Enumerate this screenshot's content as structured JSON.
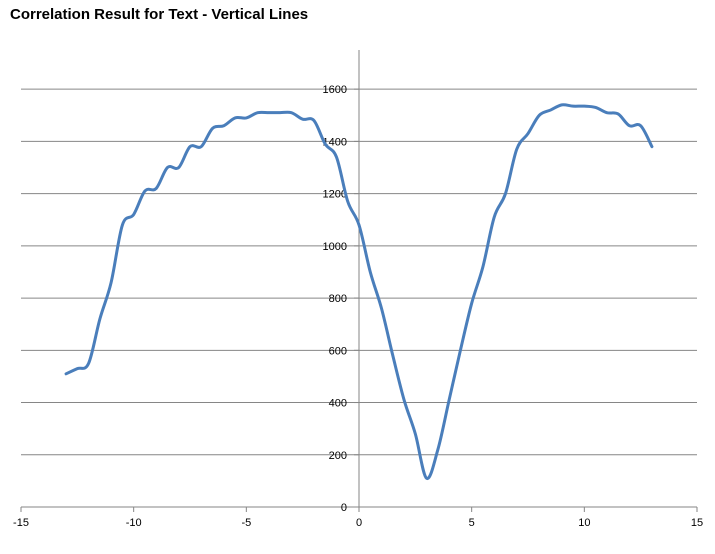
{
  "chart_data": {
    "type": "line",
    "title": "Correlation Result for Text - Vertical Lines",
    "xlabel": "",
    "ylabel": "",
    "xlim": [
      -15,
      15
    ],
    "ylim": [
      0,
      1750
    ],
    "x_ticks": [
      "-15",
      "-10",
      "-5",
      "0",
      "5",
      "10",
      "15"
    ],
    "x_tick_values": [
      -15,
      -10,
      -5,
      0,
      5,
      10,
      15
    ],
    "y_ticks": [
      "0",
      "200",
      "400",
      "600",
      "800",
      "1000",
      "1200",
      "1400",
      "1600"
    ],
    "y_tick_values": [
      0,
      200,
      400,
      600,
      800,
      1000,
      1200,
      1400,
      1600
    ],
    "grid": "horizontal",
    "legend": "none",
    "line_color": "#4a7ebb",
    "grid_color": "#868686",
    "series": [
      {
        "x": [
          -13,
          -12.5,
          -12,
          -11.5,
          -11,
          -10.5,
          -10,
          -9.5,
          -9,
          -8.5,
          -8,
          -7.5,
          -7,
          -6.5,
          -6,
          -5.5,
          -5,
          -4.5,
          -4,
          -3.5,
          -3,
          -2.5,
          -2,
          -1.5,
          -1,
          -0.5,
          0,
          0.5,
          1,
          1.5,
          2,
          2.5,
          3,
          3.5,
          4,
          4.5,
          5,
          5.5,
          6,
          6.5,
          7,
          7.5,
          8,
          8.5,
          9,
          9.5,
          10,
          10.5,
          11,
          11.5,
          12,
          12.5,
          13
        ],
        "y": [
          510,
          530,
          550,
          720,
          860,
          1080,
          1120,
          1210,
          1220,
          1300,
          1300,
          1380,
          1380,
          1450,
          1460,
          1490,
          1490,
          1510,
          1510,
          1510,
          1510,
          1485,
          1480,
          1390,
          1340,
          1170,
          1080,
          900,
          760,
          580,
          410,
          280,
          110,
          220,
          410,
          600,
          780,
          920,
          1110,
          1200,
          1370,
          1430,
          1500,
          1520,
          1540,
          1535,
          1535,
          1530,
          1510,
          1505,
          1460,
          1460,
          1380
        ]
      }
    ]
  }
}
